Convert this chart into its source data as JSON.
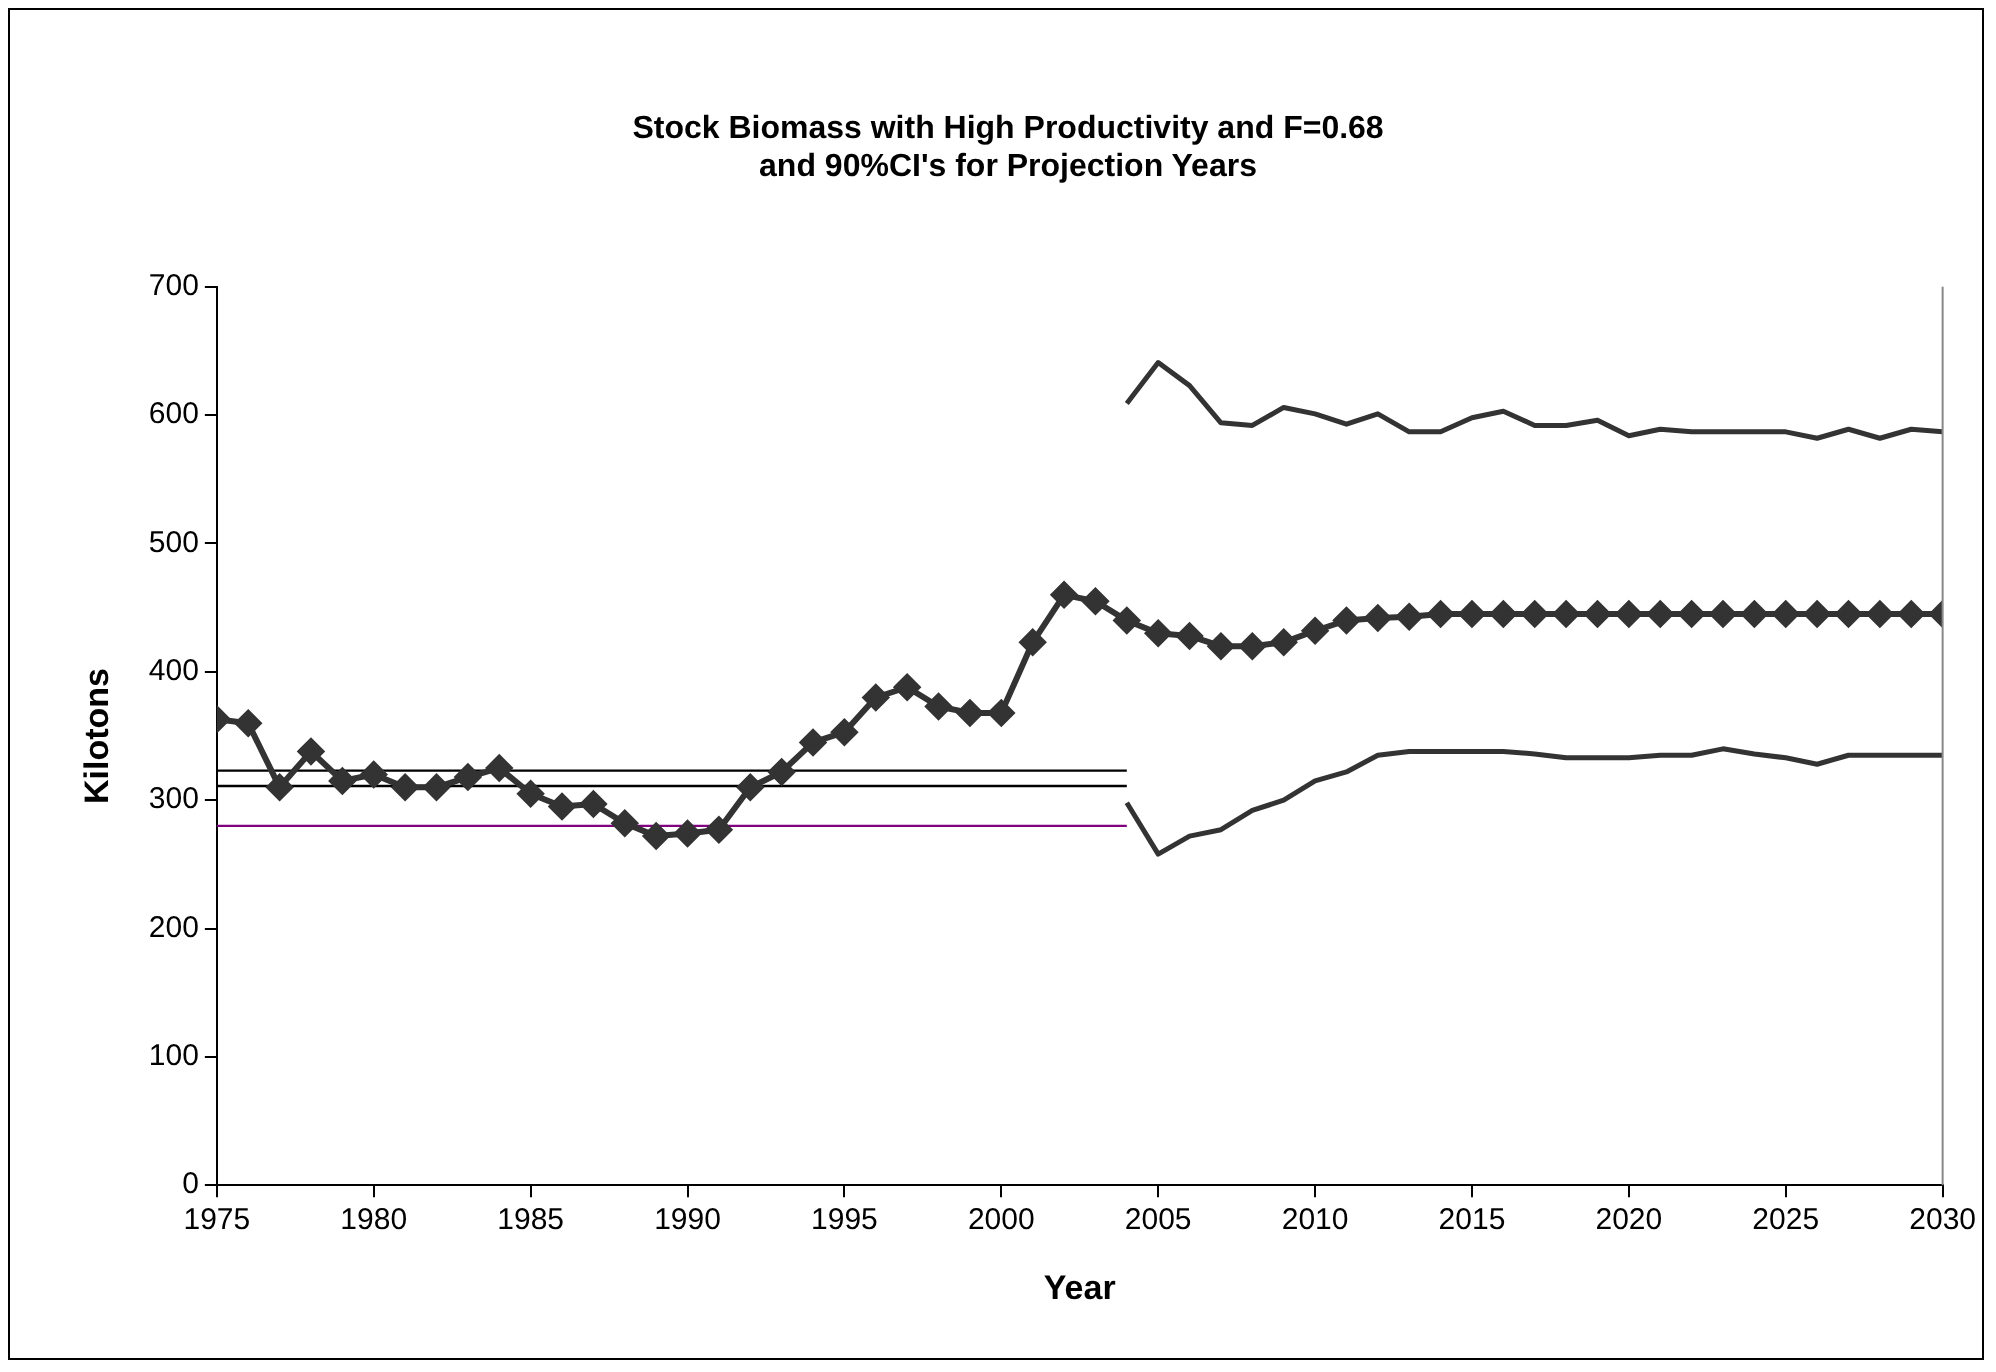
{
  "chart_data": {
    "type": "line",
    "title": [
      "Stock Biomass with High Productivity and F=0.68",
      "and 90%CI's for Projection Years"
    ],
    "xlabel": "Year",
    "ylabel": "Kilotons",
    "xlim": [
      1975,
      2030
    ],
    "xticks": [
      1975,
      1980,
      1985,
      1990,
      1995,
      2000,
      2005,
      2010,
      2015,
      2020,
      2025,
      2030
    ],
    "ylim": [
      0,
      700
    ],
    "yticks": [
      0,
      100,
      200,
      300,
      400,
      500,
      600,
      700
    ],
    "grid": false,
    "legend": false,
    "series": [
      {
        "color": "#333333",
        "marker": "diamond",
        "x": [
          1975,
          1976,
          1977,
          1978,
          1979,
          1980,
          1981,
          1982,
          1983,
          1984,
          1985,
          1986,
          1987,
          1988,
          1989,
          1990,
          1991,
          1992,
          1993,
          1994,
          1995,
          1996,
          1997,
          1998,
          1999,
          2000,
          2001,
          2002,
          2003,
          2004,
          2005,
          2006,
          2007,
          2008,
          2009,
          2010,
          2011,
          2012,
          2013,
          2014,
          2015,
          2016,
          2017,
          2018,
          2019,
          2020,
          2021,
          2022,
          2023,
          2024,
          2025,
          2026,
          2027,
          2028,
          2029,
          2030
        ],
        "values": [
          363,
          360,
          310,
          338,
          315,
          320,
          310,
          310,
          318,
          325,
          305,
          295,
          297,
          282,
          272,
          274,
          277,
          310,
          322,
          345,
          353,
          380,
          388,
          373,
          368,
          368,
          423,
          460,
          455,
          440,
          430,
          428,
          420,
          420,
          423,
          432,
          440,
          442,
          443,
          445,
          445,
          445,
          445,
          445,
          445,
          445,
          445,
          445,
          445,
          445,
          445,
          445,
          445,
          445,
          445,
          445
        ]
      },
      {
        "color": "#333333",
        "marker": "none",
        "x": [
          2004,
          2005,
          2006,
          2007,
          2008,
          2009,
          2010,
          2011,
          2012,
          2013,
          2014,
          2015,
          2016,
          2017,
          2018,
          2019,
          2020,
          2021,
          2022,
          2023,
          2024,
          2025,
          2026,
          2027,
          2028,
          2029,
          2030
        ],
        "values": [
          609,
          641,
          623,
          594,
          592,
          606,
          601,
          593,
          601,
          587,
          587,
          598,
          603,
          592,
          592,
          596,
          584,
          589,
          587,
          587,
          587,
          587,
          582,
          589,
          582,
          589,
          587
        ]
      },
      {
        "color": "#333333",
        "marker": "none",
        "x": [
          2004,
          2005,
          2006,
          2007,
          2008,
          2009,
          2010,
          2011,
          2012,
          2013,
          2014,
          2015,
          2016,
          2017,
          2018,
          2019,
          2020,
          2021,
          2022,
          2023,
          2024,
          2025,
          2026,
          2027,
          2028,
          2029,
          2030
        ],
        "values": [
          298,
          258,
          272,
          277,
          292,
          300,
          315,
          322,
          335,
          338,
          338,
          338,
          338,
          336,
          333,
          333,
          333,
          335,
          335,
          340,
          336,
          333,
          328,
          335,
          335,
          335,
          335
        ]
      },
      {
        "color": "#000000",
        "marker": "none",
        "x": [
          1975,
          2004
        ],
        "values": [
          323,
          323
        ]
      },
      {
        "color": "#000000",
        "marker": "none",
        "x": [
          1975,
          2004
        ],
        "values": [
          311,
          311
        ]
      },
      {
        "color": "#800080",
        "marker": "none",
        "x": [
          1975,
          2004
        ],
        "values": [
          280,
          280
        ]
      }
    ]
  }
}
